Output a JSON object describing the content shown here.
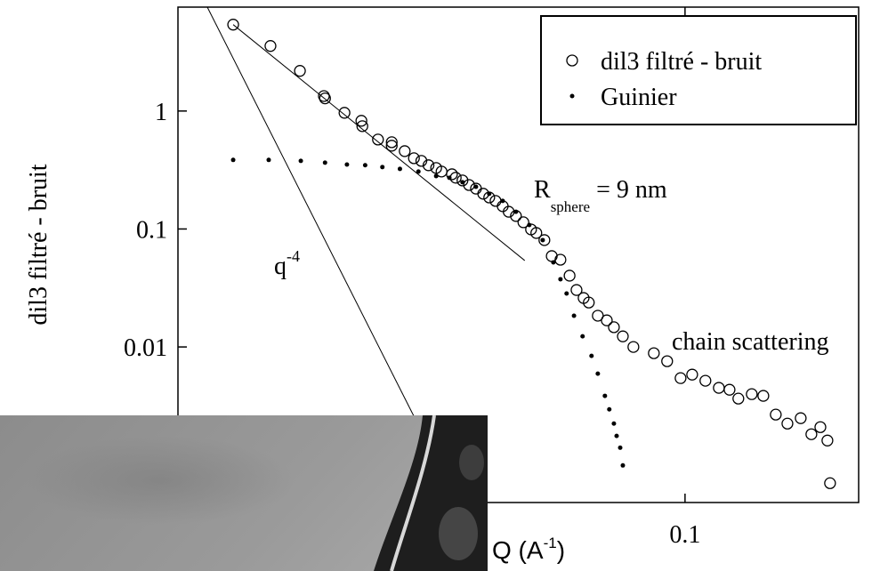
{
  "chart_data": {
    "type": "scatter",
    "y_label": "dil3 filtré - bruit",
    "x_label": {
      "text": "Q (A",
      "superscript": "-1",
      "suffix": ")"
    },
    "xscale": "log",
    "yscale": "log",
    "xlim": [
      0.01,
      0.22
    ],
    "ylim": [
      0.00048,
      7.6
    ],
    "xticks": [
      0.1
    ],
    "yticks": [
      0.01,
      0.1,
      1
    ],
    "legend": "upper right",
    "series": [
      {
        "name": "dil3 filtré - bruit",
        "marker": "open-circle",
        "color": "#000000",
        "x": [
          0.01285,
          0.01522,
          0.0174,
          0.0194,
          0.0195,
          0.0213,
          0.023,
          0.0231,
          0.0248,
          0.0264,
          0.0264,
          0.028,
          0.0292,
          0.0302,
          0.0312,
          0.0323,
          0.0331,
          0.0347,
          0.0353,
          0.0364,
          0.0375,
          0.0387,
          0.04,
          0.0411,
          0.0423,
          0.0437,
          0.0449,
          0.0464,
          0.048,
          0.0497,
          0.0509,
          0.0528,
          0.0546,
          0.0568,
          0.0592,
          0.0611,
          0.0631,
          0.0646,
          0.0673,
          0.0701,
          0.0724,
          0.0754,
          0.0791,
          0.0868,
          0.0922,
          0.098,
          0.1033,
          0.1097,
          0.1166,
          0.1224,
          0.1274,
          0.1354,
          0.1427,
          0.151,
          0.1592,
          0.1691,
          0.1775,
          0.1849,
          0.1909,
          0.1932
        ],
        "values": [
          5.4,
          3.56,
          2.19,
          1.34,
          1.28,
          0.966,
          0.826,
          0.744,
          0.573,
          0.544,
          0.508,
          0.457,
          0.398,
          0.378,
          0.347,
          0.329,
          0.307,
          0.291,
          0.272,
          0.258,
          0.236,
          0.22,
          0.199,
          0.185,
          0.173,
          0.156,
          0.14,
          0.129,
          0.114,
          0.0991,
          0.0925,
          0.0805,
          0.0589,
          0.0549,
          0.0402,
          0.0304,
          0.026,
          0.0238,
          0.0184,
          0.0168,
          0.0147,
          0.0123,
          0.01,
          0.00885,
          0.00757,
          0.00544,
          0.00583,
          0.00517,
          0.0045,
          0.00434,
          0.00365,
          0.00398,
          0.00385,
          0.00267,
          0.00224,
          0.00249,
          0.00182,
          0.00209,
          0.00161,
          0.0007
        ]
      },
      {
        "name": "Guinier",
        "marker": "dot",
        "color": "#000000",
        "x": [
          0.01285,
          0.0151,
          0.01747,
          0.0195,
          0.02154,
          0.0234,
          0.0253,
          0.0274,
          0.0298,
          0.0323,
          0.0343,
          0.0364,
          0.0387,
          0.0411,
          0.0437,
          0.0464,
          0.0493,
          0.0524,
          0.055,
          0.0568,
          0.0584,
          0.0604,
          0.0628,
          0.0654,
          0.0673,
          0.0695,
          0.0709,
          0.0724,
          0.0733,
          0.0745,
          0.0754
        ],
        "values": [
          0.385,
          0.385,
          0.378,
          0.365,
          0.352,
          0.347,
          0.335,
          0.323,
          0.307,
          0.281,
          0.272,
          0.249,
          0.228,
          0.199,
          0.173,
          0.14,
          0.108,
          0.0805,
          0.0521,
          0.0375,
          0.0284,
          0.0184,
          0.0123,
          0.0084,
          0.00594,
          0.00385,
          0.00296,
          0.00224,
          0.00176,
          0.0014,
          0.00099
        ]
      }
    ],
    "lines": [
      {
        "x": [
          0.01142,
          0.0292
        ],
        "values": [
          7.63,
          0.00258
        ]
      },
      {
        "x": [
          0.01285,
          0.0483
        ],
        "values": [
          5.4,
          0.054
        ]
      }
    ],
    "annotations": [
      {
        "text": "q",
        "superscript": "-4"
      },
      {
        "text": "R",
        "subscript": "sphere",
        "suffix": " = 9 nm"
      },
      {
        "text": "chain scattering"
      }
    ]
  }
}
